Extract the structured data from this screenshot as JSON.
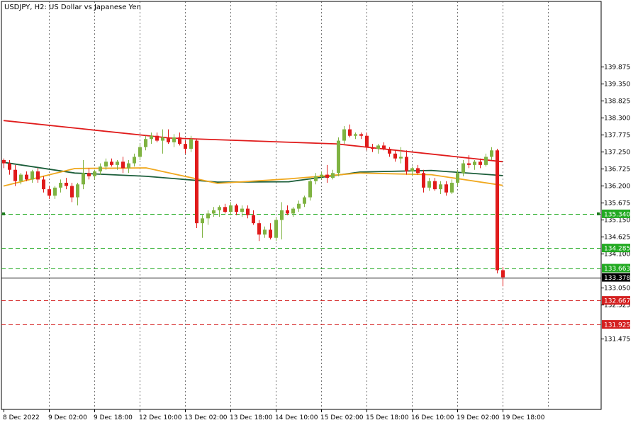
{
  "chart_data": {
    "type": "candlestick",
    "title": "USDJPY, H2:  US Dollar vs Japanese Yen",
    "symbol": "USDJPY",
    "timeframe": "H2",
    "description": "US Dollar vs Japanese Yen",
    "colors": {
      "background": "#ffffff",
      "bull": "#7fb342",
      "bear": "#e01b1b",
      "ma_red": "#e01b1b",
      "ma_orange": "#f0a81e",
      "ma_green": "#1b5e3a",
      "level_green": "#22aa22",
      "level_red": "#d42020",
      "current_line": "#000000",
      "grid": "#555555"
    },
    "y_axis": {
      "min": 130.95,
      "max": 140.35,
      "ticks": [
        "139.875",
        "139.350",
        "138.825",
        "138.300",
        "137.775",
        "137.250",
        "136.725",
        "136.200",
        "135.675",
        "135.150",
        "134.625",
        "134.100",
        "133.050",
        "132.525",
        "131.475"
      ]
    },
    "x_axis": {
      "labels": [
        "8 Dec 2022",
        "9 Dec 02:00",
        "9 Dec 18:00",
        "12 Dec 10:00",
        "13 Dec 02:00",
        "13 Dec 18:00",
        "14 Dec 10:00",
        "15 Dec 02:00",
        "15 Dec 18:00",
        "16 Dec 10:00",
        "19 Dec 02:00",
        "19 Dec 18:00"
      ],
      "bar_spacing_bars": 8
    },
    "levels": [
      {
        "value": 135.34,
        "label": "135.340",
        "color": "level_green",
        "style": "dashed"
      },
      {
        "value": 134.285,
        "label": "134.285",
        "color": "level_green",
        "style": "dashed"
      },
      {
        "value": 133.663,
        "label": "133.663",
        "color": "level_green",
        "style": "dashed"
      },
      {
        "value": 133.378,
        "label": "133.378",
        "color": "current_line",
        "style": "solid"
      },
      {
        "value": 132.667,
        "label": "132.667",
        "color": "level_red",
        "style": "dashed"
      },
      {
        "value": 131.925,
        "label": "131.925",
        "color": "level_red",
        "style": "dashed"
      }
    ],
    "candles": [
      [
        137.0,
        137.05,
        136.75,
        136.9
      ],
      [
        136.9,
        137.0,
        136.55,
        136.7
      ],
      [
        136.7,
        136.85,
        136.2,
        136.35
      ],
      [
        136.35,
        136.6,
        136.25,
        136.55
      ],
      [
        136.55,
        136.65,
        136.35,
        136.4
      ],
      [
        136.4,
        136.7,
        136.3,
        136.65
      ],
      [
        136.65,
        136.75,
        136.3,
        136.4
      ],
      [
        136.4,
        136.5,
        136.0,
        136.1
      ],
      [
        136.1,
        136.2,
        135.8,
        135.9
      ],
      [
        135.9,
        136.2,
        135.8,
        136.15
      ],
      [
        136.15,
        136.4,
        136.0,
        136.3
      ],
      [
        136.3,
        136.45,
        136.1,
        136.2
      ],
      [
        136.2,
        136.3,
        135.7,
        135.85
      ],
      [
        135.85,
        136.3,
        135.6,
        136.25
      ],
      [
        136.25,
        137.0,
        136.1,
        136.6
      ],
      [
        136.6,
        136.75,
        136.4,
        136.5
      ],
      [
        136.5,
        136.7,
        136.4,
        136.65
      ],
      [
        136.65,
        136.9,
        136.55,
        136.8
      ],
      [
        136.8,
        137.05,
        136.7,
        136.95
      ],
      [
        136.95,
        137.05,
        136.8,
        136.85
      ],
      [
        136.85,
        137.0,
        136.7,
        136.95
      ],
      [
        136.95,
        137.1,
        136.6,
        136.75
      ],
      [
        136.75,
        137.0,
        136.6,
        136.9
      ],
      [
        136.9,
        137.2,
        136.8,
        137.1
      ],
      [
        137.1,
        137.5,
        137.0,
        137.4
      ],
      [
        137.4,
        137.75,
        137.3,
        137.65
      ],
      [
        137.65,
        137.85,
        137.5,
        137.75
      ],
      [
        137.75,
        137.85,
        137.55,
        137.6
      ],
      [
        137.6,
        137.95,
        137.2,
        137.7
      ],
      [
        137.7,
        137.95,
        137.5,
        137.55
      ],
      [
        137.55,
        137.8,
        137.4,
        137.7
      ],
      [
        137.7,
        137.85,
        137.45,
        137.5
      ],
      [
        137.5,
        137.6,
        137.2,
        137.35
      ],
      [
        137.35,
        137.75,
        137.25,
        137.65
      ],
      [
        137.6,
        137.65,
        134.9,
        135.05
      ],
      [
        135.05,
        135.3,
        134.6,
        135.2
      ],
      [
        135.2,
        135.45,
        135.0,
        135.35
      ],
      [
        135.35,
        135.55,
        135.25,
        135.45
      ],
      [
        135.45,
        135.6,
        135.25,
        135.55
      ],
      [
        135.55,
        135.65,
        135.35,
        135.4
      ],
      [
        135.4,
        135.7,
        135.3,
        135.6
      ],
      [
        135.6,
        135.65,
        135.3,
        135.4
      ],
      [
        135.4,
        135.6,
        135.25,
        135.5
      ],
      [
        135.5,
        135.6,
        135.2,
        135.3
      ],
      [
        135.3,
        135.45,
        135.0,
        135.05
      ],
      [
        135.05,
        135.15,
        134.5,
        134.7
      ],
      [
        134.7,
        134.95,
        134.6,
        134.85
      ],
      [
        134.85,
        135.05,
        134.55,
        134.6
      ],
      [
        134.6,
        135.25,
        134.5,
        135.15
      ],
      [
        135.15,
        135.7,
        134.55,
        135.45
      ],
      [
        135.45,
        135.6,
        135.3,
        135.35
      ],
      [
        135.35,
        135.55,
        135.25,
        135.5
      ],
      [
        135.5,
        135.75,
        135.4,
        135.65
      ],
      [
        135.65,
        135.9,
        135.55,
        135.85
      ],
      [
        135.85,
        136.45,
        135.75,
        136.35
      ],
      [
        136.35,
        136.6,
        136.25,
        136.5
      ],
      [
        136.5,
        136.65,
        136.4,
        136.55
      ],
      [
        136.55,
        136.85,
        136.3,
        136.45
      ],
      [
        136.45,
        136.7,
        136.4,
        136.6
      ],
      [
        136.6,
        137.7,
        136.5,
        137.6
      ],
      [
        137.6,
        138.05,
        137.5,
        137.95
      ],
      [
        137.95,
        138.1,
        137.7,
        137.75
      ],
      [
        137.75,
        137.85,
        137.65,
        137.8
      ],
      [
        137.8,
        137.85,
        137.65,
        137.75
      ],
      [
        137.75,
        137.85,
        137.3,
        137.4
      ],
      [
        137.4,
        137.5,
        137.25,
        137.35
      ],
      [
        137.35,
        137.5,
        137.2,
        137.45
      ],
      [
        137.45,
        137.55,
        137.3,
        137.35
      ],
      [
        137.35,
        137.4,
        137.1,
        137.2
      ],
      [
        137.2,
        137.3,
        136.95,
        137.05
      ],
      [
        137.05,
        137.4,
        136.9,
        137.1
      ],
      [
        137.1,
        137.3,
        136.55,
        136.65
      ],
      [
        136.65,
        136.8,
        136.5,
        136.75
      ],
      [
        136.75,
        136.85,
        136.55,
        136.6
      ],
      [
        136.6,
        136.7,
        136.0,
        136.15
      ],
      [
        136.15,
        136.45,
        136.05,
        136.35
      ],
      [
        136.35,
        136.45,
        136.05,
        136.1
      ],
      [
        136.1,
        136.35,
        135.95,
        136.25
      ],
      [
        136.25,
        136.35,
        135.9,
        136.0
      ],
      [
        136.0,
        136.4,
        135.95,
        136.3
      ],
      [
        136.3,
        136.7,
        136.2,
        136.6
      ],
      [
        136.6,
        137.0,
        136.5,
        136.9
      ],
      [
        136.9,
        137.15,
        136.75,
        136.85
      ],
      [
        136.85,
        137.0,
        136.7,
        136.95
      ],
      [
        136.95,
        137.05,
        136.75,
        136.85
      ],
      [
        136.85,
        137.2,
        136.8,
        137.1
      ],
      [
        137.1,
        137.4,
        137.0,
        137.3
      ],
      [
        137.3,
        137.35,
        133.5,
        133.6
      ],
      [
        133.6,
        133.7,
        133.1,
        133.38
      ]
    ],
    "ma_red": [
      138.22,
      137.68,
      137.5,
      136.95
    ],
    "ma_orange": [
      136.2,
      136.74,
      136.76,
      136.28,
      136.42,
      136.6,
      136.55,
      136.22
    ],
    "ma_green": [
      136.93,
      136.6,
      136.5,
      136.32,
      136.33,
      136.63,
      136.68,
      136.52
    ]
  }
}
